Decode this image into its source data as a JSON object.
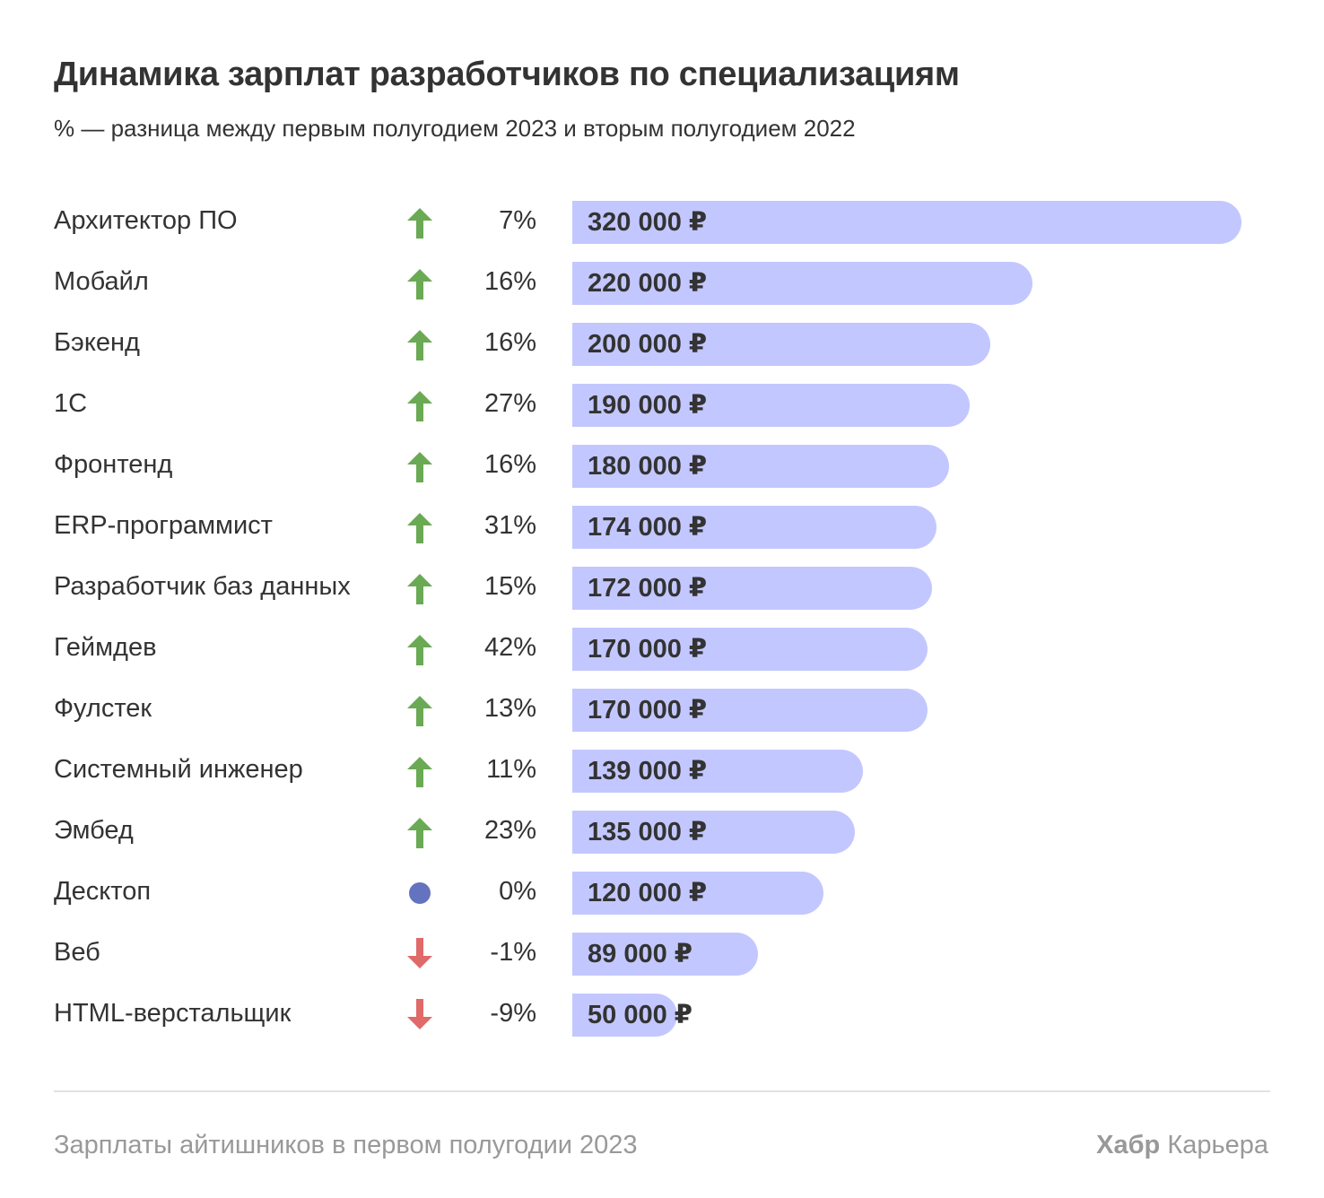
{
  "chart_data": {
    "type": "bar",
    "orientation": "horizontal",
    "title": "Динамика зарплат разработчиков по специализациям",
    "subtitle": "% — разница между первым полугодием 2023 и вторым полугодием 2022",
    "xlim": [
      0,
      320000
    ],
    "currency": "₽",
    "categories": [
      "Архитектор ПО",
      "Мобайл",
      "Бэкенд",
      "1С",
      "Фронтенд",
      "ERP-программист",
      "Разработчик баз данных",
      "Геймдев",
      "Фулстек",
      "Системный инженер",
      "Эмбед",
      "Десктоп",
      "Веб",
      "HTML-верстальщик"
    ],
    "values": [
      320000,
      220000,
      200000,
      190000,
      180000,
      174000,
      172000,
      170000,
      170000,
      139000,
      135000,
      120000,
      89000,
      50000
    ],
    "value_labels": [
      "320 000 ₽",
      "220 000 ₽",
      "200 000 ₽",
      "190 000 ₽",
      "180 000 ₽",
      "174 000 ₽",
      "172 000 ₽",
      "170 000 ₽",
      "170 000 ₽",
      "139 000 ₽",
      "135 000 ₽",
      "120 000 ₽",
      "89 000 ₽",
      "50 000 ₽"
    ],
    "change_percent": [
      7,
      16,
      16,
      27,
      16,
      31,
      15,
      42,
      13,
      11,
      23,
      0,
      -1,
      -9
    ],
    "change_labels": [
      "7%",
      "16%",
      "16%",
      "27%",
      "16%",
      "31%",
      "15%",
      "42%",
      "13%",
      "11%",
      "23%",
      "0%",
      "-1%",
      "-9%"
    ],
    "trend": [
      "up",
      "up",
      "up",
      "up",
      "up",
      "up",
      "up",
      "up",
      "up",
      "up",
      "up",
      "flat",
      "down",
      "down"
    ],
    "colors": {
      "bar": "#c3c7ff",
      "up": "#6aaa54",
      "down": "#e0696a",
      "flat": "#6473bf"
    }
  },
  "footer": {
    "source": "Зарплаты айтишников в первом полугодии 2023",
    "brand_bold": "Хабр",
    "brand_regular": "Карьера"
  }
}
